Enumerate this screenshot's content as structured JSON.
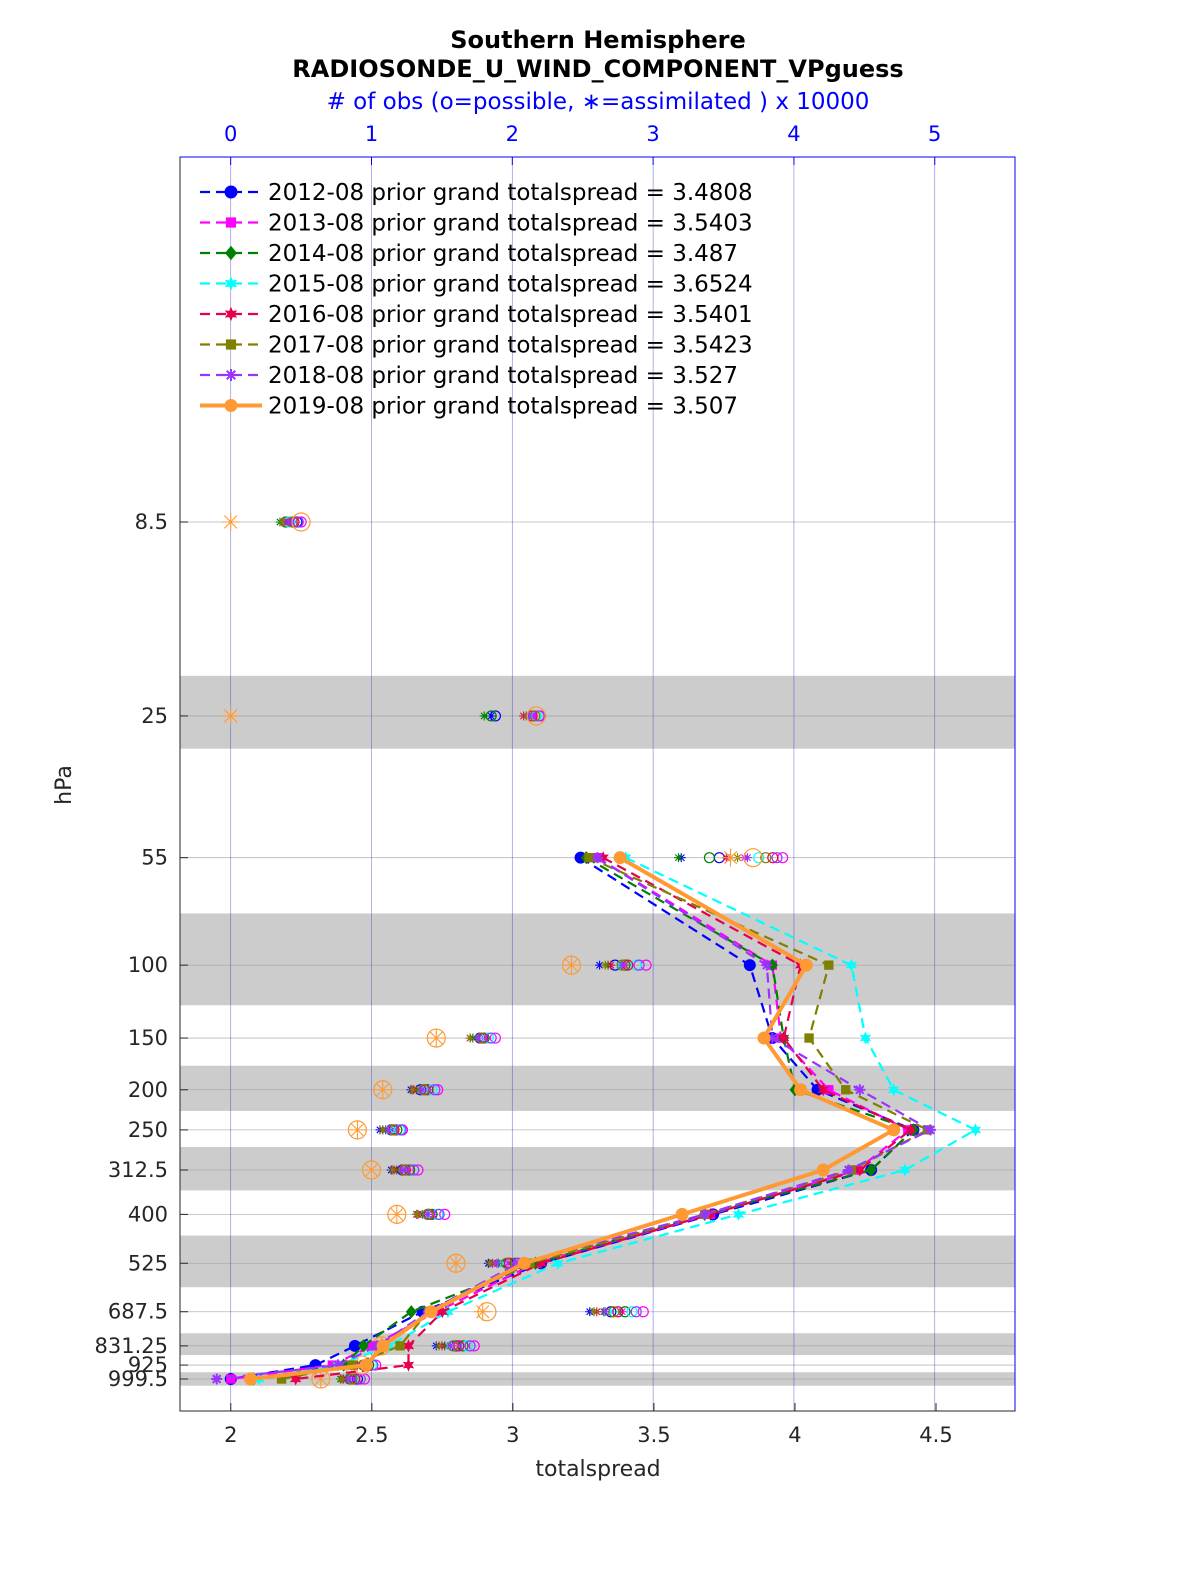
{
  "chart_data": {
    "type": "line",
    "title": "Southern Hemisphere",
    "subtitle": "RADIOSONDE_U_WIND_COMPONENT_VPguess",
    "top_axis_label": "# of obs (o=possible, ∗=assimilated ) x 10000",
    "xlabel": "totalspread",
    "ylabel": "hPa",
    "xlim": [
      1.82,
      4.78
    ],
    "top_xlim": [
      -0.36,
      5.57
    ],
    "x_ticks": [
      "2",
      "2.5",
      "3",
      "3.5",
      "4",
      "4.5"
    ],
    "x_tick_values": [
      2,
      2.5,
      3,
      3.5,
      4,
      4.5
    ],
    "top_ticks": [
      "0",
      "1",
      "2",
      "3",
      "4",
      "5"
    ],
    "top_tick_values": [
      0,
      1,
      2,
      3,
      4,
      5
    ],
    "levels": [
      8.5,
      25,
      55,
      100,
      150,
      200,
      250,
      312.5,
      400,
      525,
      687.5,
      831.25,
      925,
      999.5
    ],
    "level_labels": [
      "8.5",
      "25",
      "55",
      "100",
      "150",
      "200",
      "250",
      "312.5",
      "400",
      "525",
      "687.5",
      "831.25",
      "925",
      "999.5"
    ],
    "shaded_bands": [
      [
        20,
        30
      ],
      [
        75,
        125
      ],
      [
        175,
        225
      ],
      [
        275,
        350
      ],
      [
        450,
        600
      ],
      [
        775,
        875
      ],
      [
        962.5,
        1037.5
      ]
    ],
    "series": [
      {
        "name": "2012-08 prior grand totalspread = 3.4808",
        "color": "#0000ff",
        "marker": "circle",
        "style": "dashed",
        "spread": [
          null,
          null,
          3.24,
          3.84,
          3.92,
          4.08,
          4.42,
          4.27,
          3.71,
          3.1,
          2.68,
          2.44,
          2.3,
          2.0
        ]
      },
      {
        "name": "2013-08 prior grand totalspread = 3.5403",
        "color": "#ff00ff",
        "marker": "square",
        "style": "dashed",
        "spread": [
          null,
          null,
          3.3,
          3.92,
          3.95,
          4.12,
          4.4,
          4.22,
          3.7,
          3.08,
          2.73,
          2.5,
          2.36,
          2.0
        ]
      },
      {
        "name": "2014-08 prior grand totalspread = 3.487",
        "color": "#008000",
        "marker": "diamond",
        "style": "dashed",
        "spread": [
          null,
          null,
          3.26,
          3.92,
          3.96,
          4.0,
          4.42,
          4.27,
          3.68,
          3.08,
          2.64,
          2.47,
          2.4,
          2.08
        ]
      },
      {
        "name": "2015-08 prior grand totalspread = 3.6524",
        "color": "#00ffff",
        "marker": "hexagram",
        "style": "dashed",
        "spread": [
          null,
          null,
          3.4,
          4.2,
          4.25,
          4.35,
          4.64,
          4.39,
          3.8,
          3.16,
          2.77,
          2.56,
          2.38,
          2.1
        ]
      },
      {
        "name": "2016-08 prior grand totalspread = 3.5401",
        "color": "#e6004c",
        "marker": "hexagram",
        "style": "dashed",
        "spread": [
          null,
          null,
          3.32,
          4.02,
          3.96,
          4.1,
          4.41,
          4.23,
          3.7,
          3.1,
          2.75,
          2.63,
          2.63,
          2.23
        ]
      },
      {
        "name": "2017-08 prior grand totalspread = 3.5423",
        "color": "#808000",
        "marker": "square",
        "style": "dashed",
        "spread": [
          null,
          null,
          3.27,
          4.12,
          4.05,
          4.18,
          4.47,
          4.2,
          3.68,
          3.06,
          2.7,
          2.6,
          2.43,
          2.18
        ]
      },
      {
        "name": "2018-08 prior grand totalspread = 3.527",
        "color": "#9933ff",
        "marker": "asterisk",
        "style": "dashed",
        "spread": [
          null,
          null,
          3.3,
          3.9,
          3.92,
          4.23,
          4.48,
          4.19,
          3.68,
          3.02,
          2.7,
          2.52,
          2.38,
          1.95
        ]
      },
      {
        "name": "2019-08 prior grand totalspread = 3.507",
        "color": "#ff9933",
        "marker": "circle",
        "style": "solid",
        "spread": [
          null,
          null,
          3.38,
          4.04,
          3.89,
          4.02,
          4.35,
          4.1,
          3.6,
          3.04,
          2.71,
          2.54,
          2.48,
          2.07
        ]
      }
    ],
    "obs_counts": {
      "description_levels": "counts in units of 10000 per pressure level, same order as levels",
      "series": [
        {
          "name": "2012-08",
          "color": "#0000ff",
          "possible": [
            0.47,
            1.88,
            3.47,
            2.73,
            1.77,
            1.35,
            1.14,
            1.22,
            1.4,
            1.97,
            2.7,
            1.6,
            0.95,
            0.9
          ],
          "assimilated": [
            0.4,
            1.85,
            3.2,
            2.62,
            1.7,
            1.28,
            1.06,
            1.14,
            1.32,
            1.83,
            2.55,
            1.46,
            0.88,
            0.82
          ]
        },
        {
          "name": "2013-08",
          "color": "#ff00ff",
          "possible": [
            0.5,
            2.2,
            3.92,
            2.95,
            1.88,
            1.47,
            1.22,
            1.33,
            1.52,
            2.08,
            2.93,
            1.73,
            1.03,
            0.95
          ],
          "assimilated": [
            0.43,
            2.15,
            3.65,
            2.8,
            1.8,
            1.4,
            1.15,
            1.25,
            1.44,
            1.97,
            2.78,
            1.62,
            0.98,
            0.88
          ]
        },
        {
          "name": "2014-08",
          "color": "#008000",
          "possible": [
            0.39,
            1.85,
            3.4,
            2.8,
            1.8,
            1.4,
            1.18,
            1.27,
            1.43,
            2.02,
            2.8,
            1.65,
            0.98,
            0.85
          ],
          "assimilated": [
            0.35,
            1.8,
            3.18,
            2.68,
            1.72,
            1.32,
            1.1,
            1.18,
            1.36,
            1.9,
            2.65,
            1.52,
            0.92,
            0.78
          ]
        },
        {
          "name": "2015-08",
          "color": "#00ffff",
          "possible": [
            0.42,
            2.17,
            3.75,
            2.88,
            1.83,
            1.43,
            1.2,
            1.3,
            1.47,
            2.05,
            2.85,
            1.68,
            1.0,
            0.87
          ],
          "assimilated": [
            0.37,
            2.1,
            3.55,
            2.76,
            1.76,
            1.35,
            1.13,
            1.22,
            1.39,
            1.93,
            2.7,
            1.55,
            0.94,
            0.8
          ]
        },
        {
          "name": "2016-08",
          "color": "#e6004c",
          "possible": [
            0.45,
            2.14,
            3.85,
            2.82,
            1.79,
            1.38,
            1.16,
            1.24,
            1.41,
            1.98,
            2.75,
            1.62,
            0.96,
            0.88
          ],
          "assimilated": [
            0.38,
            2.08,
            3.52,
            2.7,
            1.7,
            1.3,
            1.08,
            1.16,
            1.33,
            1.86,
            2.6,
            1.5,
            0.9,
            0.8
          ]
        },
        {
          "name": "2017-08",
          "color": "#808000",
          "possible": [
            0.44,
            2.16,
            3.8,
            2.78,
            1.78,
            1.37,
            1.15,
            1.23,
            1.4,
            1.96,
            2.72,
            1.58,
            0.94,
            0.86
          ],
          "assimilated": [
            0.37,
            2.1,
            3.6,
            2.66,
            1.7,
            1.29,
            1.08,
            1.15,
            1.32,
            1.84,
            2.58,
            1.48,
            0.88,
            0.79
          ]
        },
        {
          "name": "2018-08",
          "color": "#9933ff",
          "possible": [
            0.48,
            2.19,
            3.88,
            2.9,
            1.85,
            1.45,
            1.21,
            1.3,
            1.48,
            2.04,
            2.88,
            1.7,
            1.01,
            0.92
          ],
          "assimilated": [
            0.41,
            2.12,
            3.67,
            2.78,
            1.76,
            1.36,
            1.12,
            1.22,
            1.4,
            1.89,
            2.66,
            1.56,
            0.93,
            0.84
          ]
        },
        {
          "name": "2019-08",
          "color": "#ff9933",
          "possible": [
            0.5,
            2.17,
            3.71,
            2.42,
            1.46,
            1.08,
            0.9,
            1.0,
            1.18,
            1.6,
            1.82,
            1.07,
            0.93,
            0.64
          ],
          "assimilated": [
            0.0,
            0.0,
            3.55,
            2.42,
            1.46,
            1.08,
            0.9,
            1.0,
            1.18,
            1.6,
            1.79,
            1.07,
            0.86,
            0.64
          ]
        }
      ]
    },
    "grid": true,
    "legend_position": "top-left"
  }
}
